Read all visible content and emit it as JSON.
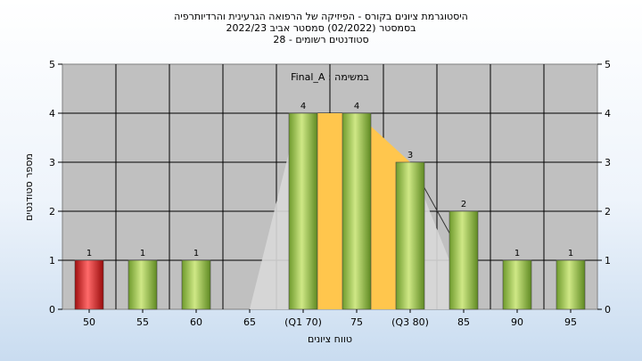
{
  "chart_data": {
    "type": "bar",
    "title_lines": [
      "היסטוגרמת ציונים בקורס - הפיזיקה של הרפואה הגרעינית והרדיותרפיה",
      "בסמסטר  (02/2022)  סמסטר אביב 2022/23",
      "סטודנטים רשומים - 28"
    ],
    "annotation": "במשימה : Final_A",
    "xlabel": "טווח ציונים",
    "ylabel": "מספר סטודנטים",
    "ylim": [
      0,
      5
    ],
    "yticks": [
      0,
      1,
      2,
      3,
      4,
      5
    ],
    "grid": true,
    "categories": [
      "50",
      "55",
      "60",
      "65",
      "(Q1 70)",
      "75",
      "(Q3 80)",
      "85",
      "90",
      "95"
    ],
    "values": [
      1,
      1,
      1,
      0,
      4,
      4,
      3,
      2,
      1,
      1
    ],
    "data_labels": [
      "1",
      "1",
      "1",
      "",
      "4",
      "4",
      "3",
      "2",
      "1",
      "1"
    ],
    "highlight_index": 0,
    "colors": {
      "plot_bg": "#c0c0c0",
      "bar": "#8fbf3f",
      "bar_highlight": "#e02020",
      "quartile_band": "#ffc64d",
      "distribution_area": "#d8d8d8"
    }
  }
}
